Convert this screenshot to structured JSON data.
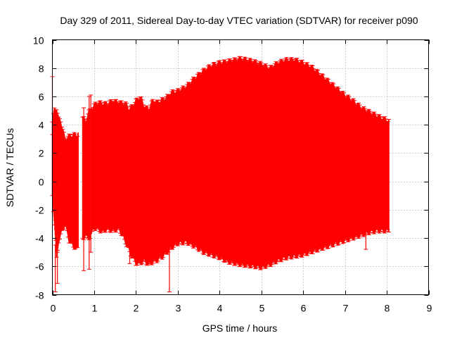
{
  "chart_data": {
    "type": "errorbar",
    "title": "Day 329 of 2011, Sidereal Day-to-day VTEC variation (SDTVAR) for receiver p090",
    "xlabel": "GPS time / hours",
    "ylabel": "SDTVAR / TECUs",
    "xlim": [
      0,
      9
    ],
    "ylim": [
      -8,
      10
    ],
    "xticks": [
      "0",
      "1",
      "2",
      "3",
      "4",
      "5",
      "6",
      "7",
      "8",
      "9"
    ],
    "yticks": [
      "-8",
      "-6",
      "-4",
      "-2",
      "0",
      "2",
      "4",
      "6",
      "8",
      "10"
    ],
    "grid": true,
    "series_color": "#ff0000",
    "envelope": {
      "upper": [
        [
          0.0,
          4.2
        ],
        [
          0.05,
          5.1
        ],
        [
          0.1,
          5.2
        ],
        [
          0.15,
          4.4
        ],
        [
          0.2,
          4.3
        ],
        [
          0.3,
          3.0
        ],
        [
          0.4,
          3.2
        ],
        [
          0.5,
          3.3
        ],
        [
          0.6,
          3.3
        ],
        [
          0.72,
          4.5
        ],
        [
          0.8,
          4.3
        ],
        [
          0.9,
          5.1
        ],
        [
          1.0,
          5.4
        ],
        [
          1.1,
          5.6
        ],
        [
          1.2,
          5.5
        ],
        [
          1.3,
          5.5
        ],
        [
          1.45,
          5.7
        ],
        [
          1.6,
          5.6
        ],
        [
          1.75,
          5.5
        ],
        [
          1.85,
          5.1
        ],
        [
          1.9,
          5.3
        ],
        [
          2.0,
          5.7
        ],
        [
          2.1,
          6.0
        ],
        [
          2.2,
          5.3
        ],
        [
          2.3,
          5.1
        ],
        [
          2.4,
          5.7
        ],
        [
          2.5,
          5.6
        ],
        [
          2.65,
          5.8
        ],
        [
          2.75,
          6.0
        ],
        [
          2.85,
          6.3
        ],
        [
          3.0,
          6.4
        ],
        [
          3.2,
          6.7
        ],
        [
          3.4,
          7.3
        ],
        [
          3.6,
          7.8
        ],
        [
          3.8,
          8.2
        ],
        [
          4.0,
          8.4
        ],
        [
          4.2,
          8.5
        ],
        [
          4.5,
          8.7
        ],
        [
          4.8,
          8.5
        ],
        [
          5.0,
          8.3
        ],
        [
          5.2,
          8.0
        ],
        [
          5.4,
          8.4
        ],
        [
          5.6,
          8.6
        ],
        [
          5.8,
          8.6
        ],
        [
          6.0,
          8.4
        ],
        [
          6.2,
          8.1
        ],
        [
          6.4,
          7.6
        ],
        [
          6.6,
          7.1
        ],
        [
          6.8,
          6.6
        ],
        [
          7.0,
          6.1
        ],
        [
          7.2,
          5.7
        ],
        [
          7.4,
          5.2
        ],
        [
          7.6,
          4.9
        ],
        [
          7.8,
          4.6
        ],
        [
          8.05,
          4.3
        ]
      ],
      "lower": [
        [
          0.0,
          -1.0
        ],
        [
          0.05,
          -3.0
        ],
        [
          0.1,
          -5.5
        ],
        [
          0.15,
          -4.2
        ],
        [
          0.2,
          -3.8
        ],
        [
          0.3,
          -3.0
        ],
        [
          0.4,
          -4.2
        ],
        [
          0.5,
          -4.6
        ],
        [
          0.6,
          -4.8
        ],
        [
          0.72,
          -4.0
        ],
        [
          0.8,
          -3.9
        ],
        [
          0.9,
          -4.0
        ],
        [
          1.0,
          -3.3
        ],
        [
          1.1,
          -3.4
        ],
        [
          1.2,
          -3.6
        ],
        [
          1.3,
          -3.4
        ],
        [
          1.45,
          -3.5
        ],
        [
          1.6,
          -3.4
        ],
        [
          1.75,
          -4.3
        ],
        [
          1.85,
          -5.0
        ],
        [
          1.9,
          -5.3
        ],
        [
          2.0,
          -5.8
        ],
        [
          2.1,
          -5.8
        ],
        [
          2.2,
          -5.6
        ],
        [
          2.3,
          -5.9
        ],
        [
          2.4,
          -5.7
        ],
        [
          2.5,
          -5.6
        ],
        [
          2.65,
          -5.3
        ],
        [
          2.75,
          -5.0
        ],
        [
          2.85,
          -4.7
        ],
        [
          3.0,
          -4.4
        ],
        [
          3.2,
          -4.3
        ],
        [
          3.4,
          -4.6
        ],
        [
          3.6,
          -5.0
        ],
        [
          3.8,
          -5.2
        ],
        [
          4.0,
          -5.4
        ],
        [
          4.2,
          -5.7
        ],
        [
          4.5,
          -5.9
        ],
        [
          4.8,
          -6.0
        ],
        [
          5.0,
          -6.1
        ],
        [
          5.2,
          -5.9
        ],
        [
          5.4,
          -5.6
        ],
        [
          5.6,
          -5.4
        ],
        [
          5.8,
          -5.3
        ],
        [
          6.0,
          -5.2
        ],
        [
          6.2,
          -5.0
        ],
        [
          6.4,
          -4.8
        ],
        [
          6.6,
          -4.6
        ],
        [
          6.8,
          -4.4
        ],
        [
          7.0,
          -4.2
        ],
        [
          7.2,
          -4.0
        ],
        [
          7.4,
          -3.8
        ],
        [
          7.6,
          -3.6
        ],
        [
          7.8,
          -3.5
        ],
        [
          8.05,
          -3.5
        ]
      ],
      "gaps": [
        [
          0.62,
          0.72
        ],
        [
          0.9,
          0.93
        ]
      ]
    },
    "outliers": [
      {
        "x": 0.0,
        "ymin": 3.3,
        "ymax": 7.4
      },
      {
        "x": 0.07,
        "ymin": -7.8,
        "ymax": -4.5
      },
      {
        "x": 0.12,
        "ymin": -7.2,
        "ymax": -5.0
      },
      {
        "x": 0.75,
        "ymin": -6.3,
        "ymax": 5.2
      },
      {
        "x": 0.88,
        "ymin": -6.2,
        "ymax": 6.0
      },
      {
        "x": 0.92,
        "ymin": -5.0,
        "ymax": 6.1
      },
      {
        "x": 1.85,
        "ymin": -5.8,
        "ymax": -4.6
      },
      {
        "x": 2.8,
        "ymin": -7.8,
        "ymax": -4.8
      },
      {
        "x": 7.5,
        "ymin": -4.8,
        "ymax": -3.5
      }
    ]
  }
}
